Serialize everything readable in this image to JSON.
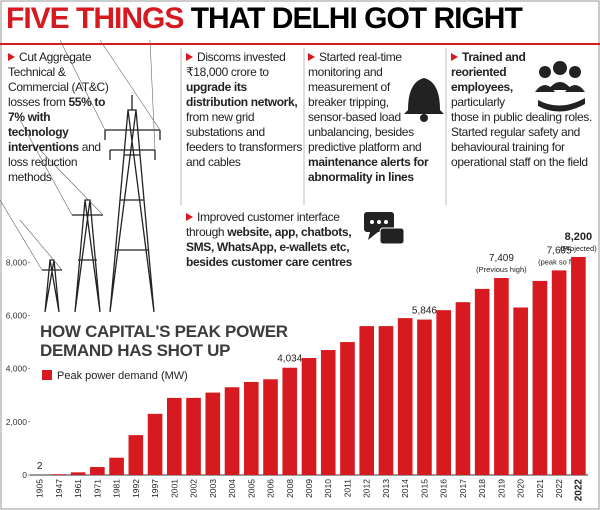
{
  "header": {
    "highlight": "FIVE THINGS",
    "rest": "THAT DELHI GOT RIGHT"
  },
  "points": [
    {
      "segments": [
        {
          "text": "Cut Aggregate Technical & Commercial (AT&C) losses from ",
          "bold": false
        },
        {
          "text": "55% to 7% with technology interventions",
          "bold": true
        },
        {
          "text": " and loss reduction methods",
          "bold": false
        }
      ]
    },
    {
      "segments": [
        {
          "text": "Discoms invested ₹18,000 crore to ",
          "bold": false
        },
        {
          "text": "upgrade its distribution network,",
          "bold": true
        },
        {
          "text": " from new grid substations and feeders to transformers and cables",
          "bold": false
        }
      ]
    },
    {
      "segments": [
        {
          "text": "Started real-time monitoring and measurement of breaker tripping, sensor-based load unbalancing, besides predictive platform and ",
          "bold": false
        },
        {
          "text": "maintenance alerts for abnormality in lines",
          "bold": true
        }
      ]
    },
    {
      "segments": [
        {
          "text": "Trained and reoriented employees,",
          "bold": true
        },
        {
          "text": " particularly those in public dealing roles. Started regular safety and behavioural training for operational staff on the field",
          "bold": false
        }
      ]
    },
    {
      "segments": [
        {
          "text": "Improved customer interface through ",
          "bold": false
        },
        {
          "text": "website, app, chatbots, SMS, WhatsApp, e-wallets etc, besides customer care centres",
          "bold": true
        }
      ]
    }
  ],
  "chart_data": {
    "type": "bar",
    "title": "HOW CAPITAL'S PEAK POWER DEMAND HAS SHOT UP",
    "categories": [
      "1905",
      "1947",
      "1961",
      "1971",
      "1981",
      "1992",
      "1997",
      "2001",
      "2002",
      "2003",
      "2004",
      "2005",
      "2006",
      "2008",
      "2009",
      "2010",
      "2011",
      "2012",
      "2013",
      "2014",
      "2015",
      "2016",
      "2017",
      "2018",
      "2019",
      "2020",
      "2021",
      "2022",
      "2022"
    ],
    "series": [
      {
        "name": "Peak power demand (MW)",
        "color": "#d71920",
        "values": [
          2,
          30,
          100,
          300,
          650,
          1500,
          2300,
          2900,
          2900,
          3100,
          3300,
          3500,
          3600,
          4034,
          4400,
          4700,
          5000,
          5600,
          5600,
          5900,
          5846,
          6200,
          6500,
          7000,
          7409,
          6300,
          7300,
          7695,
          8200
        ],
        "value_labels": [
          "2",
          null,
          null,
          null,
          null,
          null,
          null,
          null,
          null,
          null,
          null,
          null,
          null,
          "4,034",
          null,
          null,
          null,
          null,
          null,
          null,
          "5,846",
          null,
          null,
          null,
          "7,409",
          null,
          null,
          "7,695",
          "8,200"
        ],
        "value_notes": [
          null,
          null,
          null,
          null,
          null,
          null,
          null,
          null,
          null,
          null,
          null,
          null,
          null,
          null,
          null,
          null,
          null,
          null,
          null,
          null,
          null,
          null,
          null,
          null,
          "(Previous high)",
          null,
          null,
          "(peak so far)",
          "(Projected)"
        ]
      }
    ],
    "ylim": [
      0,
      8500
    ],
    "yticks": [
      0,
      {
        "value": 2000,
        "label": "2,000"
      },
      {
        "value": 4000,
        "label": "4,000"
      },
      {
        "value": 6000,
        "label": "6,000"
      },
      {
        "value": 8000,
        "label": "8,000"
      }
    ],
    "grid": false
  }
}
